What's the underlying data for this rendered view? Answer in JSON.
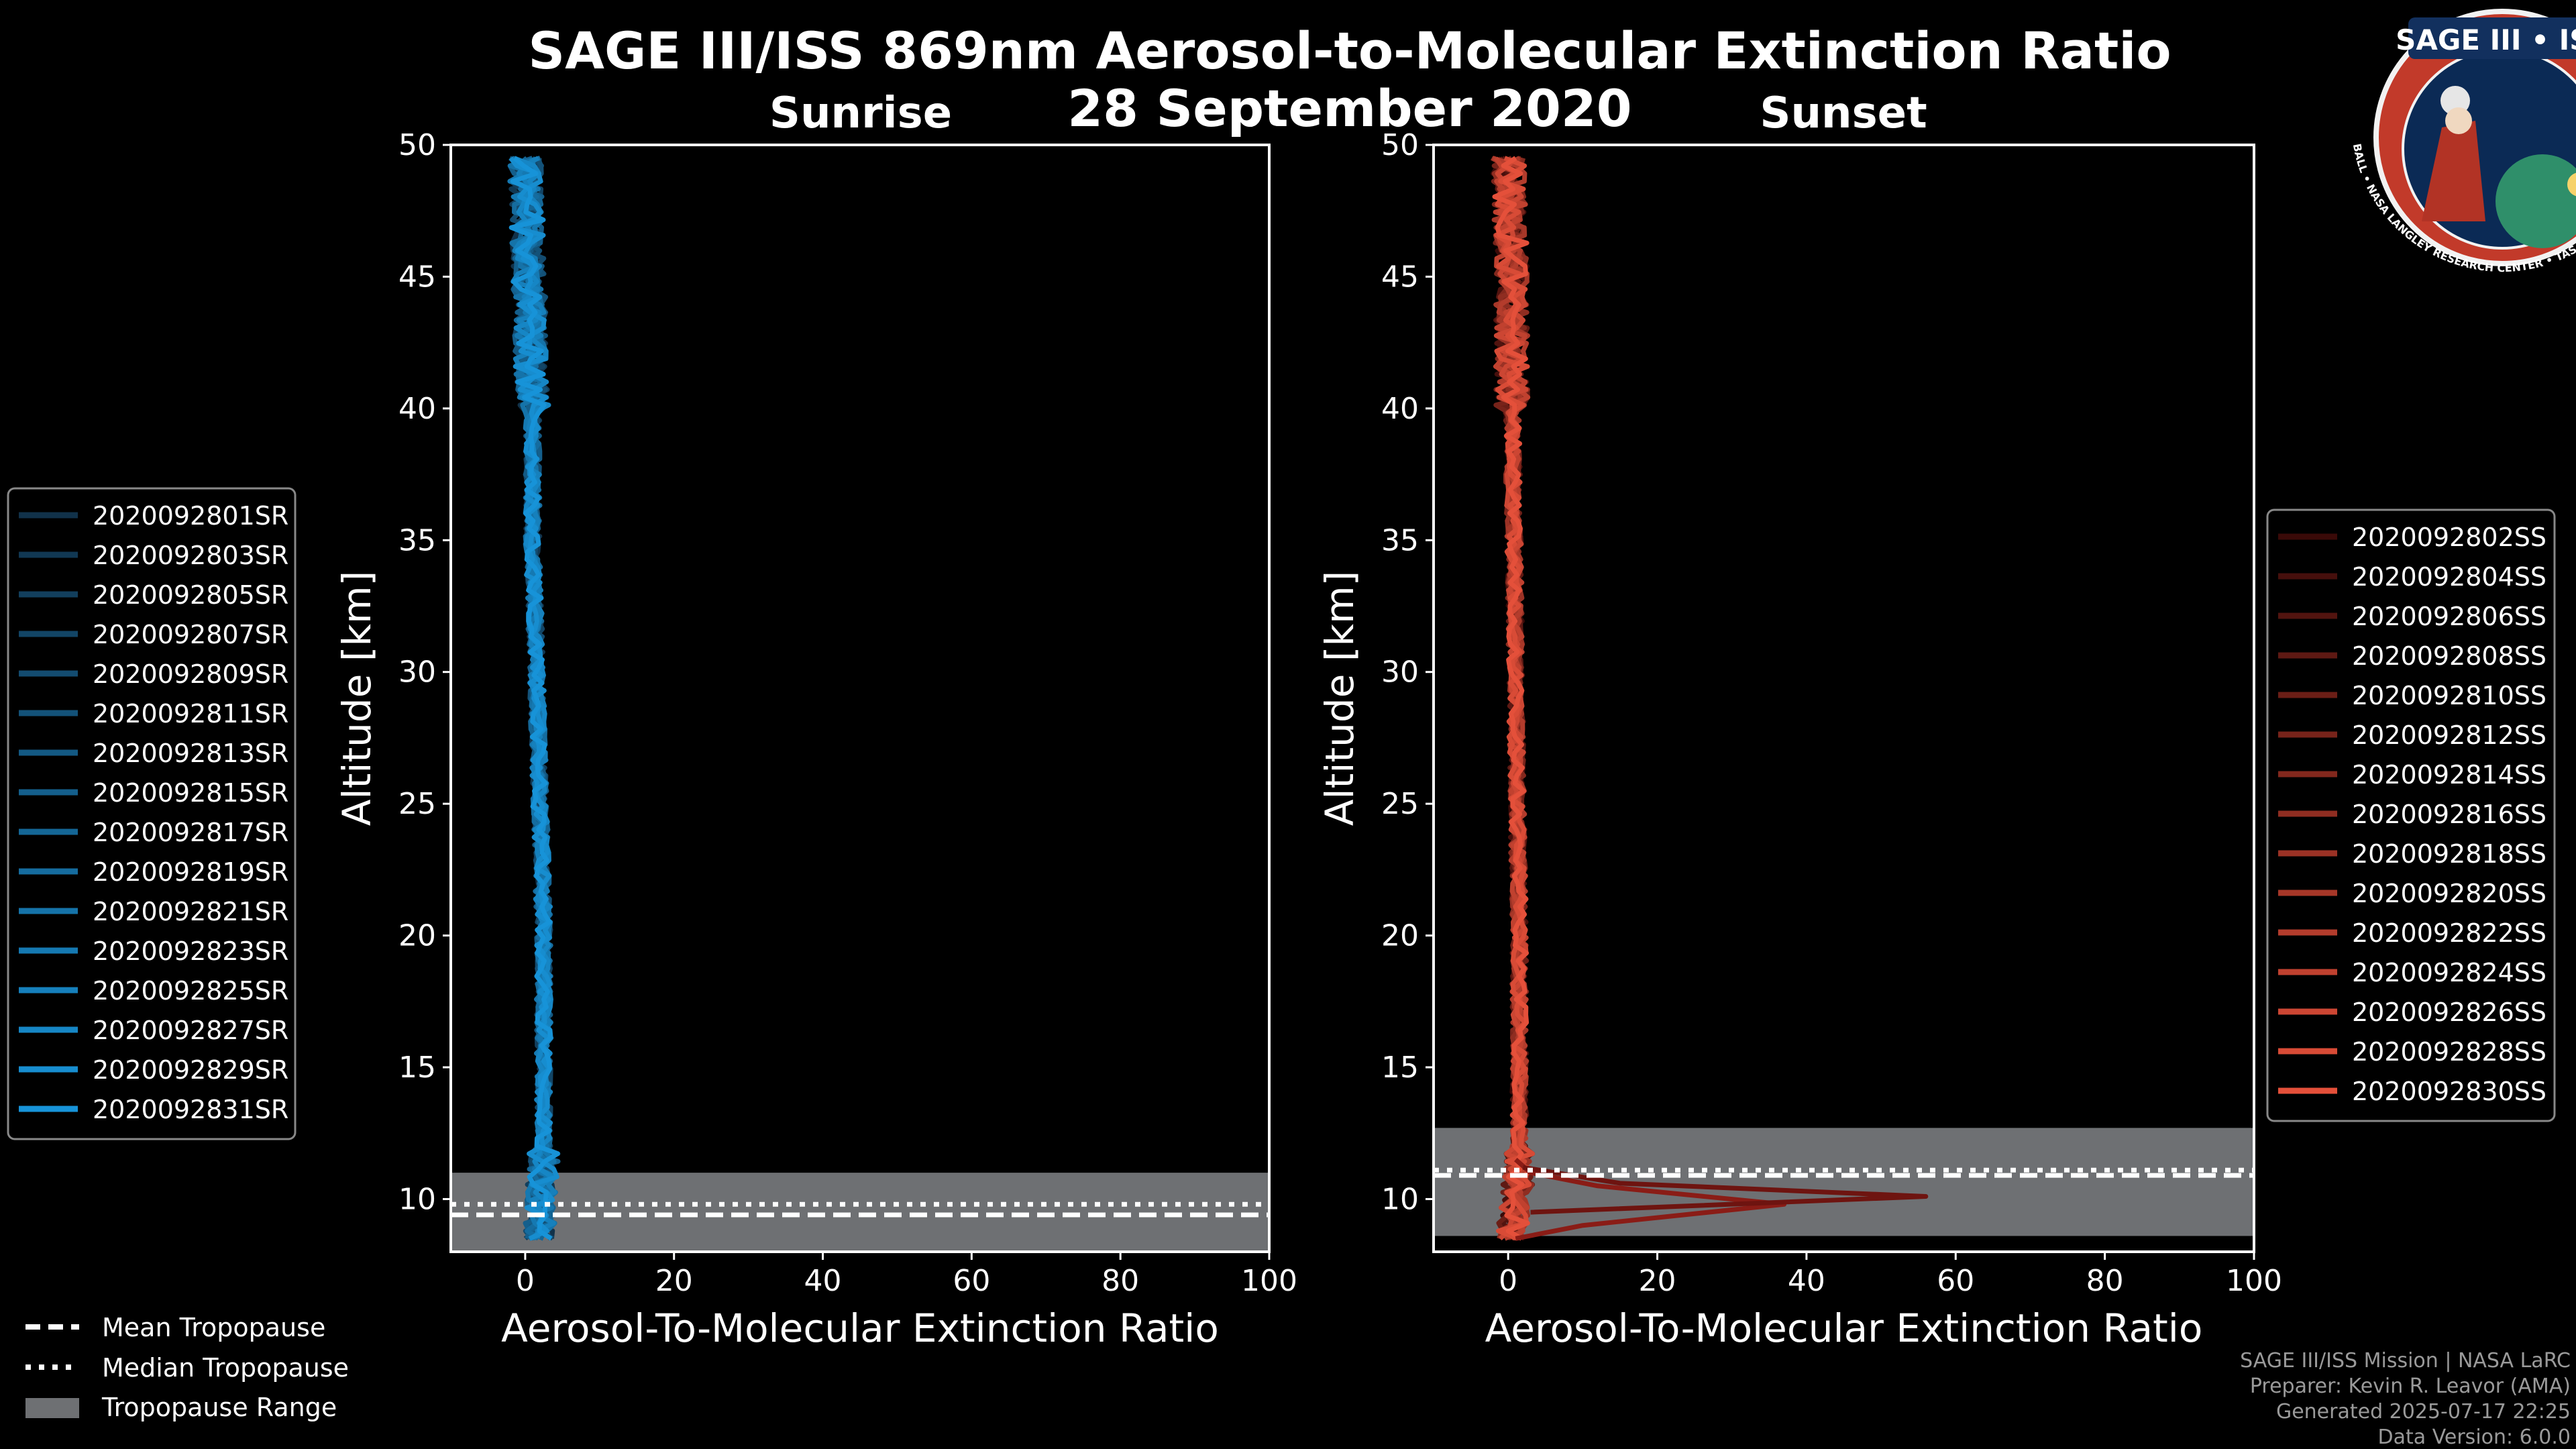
{
  "title_line1": "SAGE III/ISS 869nm Aerosol-to-Molecular Extinction Ratio",
  "title_line2": "28 September 2020",
  "badge": {
    "name": "SAGE III • ISS",
    "ring_text": "BALL • NASA LANGLEY RESEARCH CENTER • TAS-I • ESA"
  },
  "footer": {
    "line1": "SAGE III/ISS Mission | NASA LaRC",
    "line2": "Preparer: Kevin R. Leavor (AMA)",
    "line3": "Generated 2025-07-17 22:25",
    "line4": "Data Version: 6.0.0"
  },
  "common_legend": {
    "mean": "Mean Tropopause",
    "median": "Median Tropopause",
    "range": "Tropopause Range"
  },
  "chart_data": [
    {
      "type": "line",
      "title": "Sunrise",
      "xlabel": "Aerosol-To-Molecular Extinction Ratio",
      "ylabel": "Altitude [km]",
      "xlim": [
        -10,
        100
      ],
      "ylim": [
        8,
        50
      ],
      "xticks": [
        "0",
        "20",
        "40",
        "60",
        "80",
        "100"
      ],
      "yticks": [
        "10",
        "15",
        "20",
        "25",
        "30",
        "35",
        "40",
        "45",
        "50"
      ],
      "grid": false,
      "legend_position": "left",
      "tropopause": {
        "range": [
          8,
          11
        ],
        "mean": 9.4,
        "median": 9.8
      },
      "series_names": [
        "2020092801SR",
        "2020092803SR",
        "2020092805SR",
        "2020092807SR",
        "2020092809SR",
        "2020092811SR",
        "2020092813SR",
        "2020092815SR",
        "2020092817SR",
        "2020092819SR",
        "2020092821SR",
        "2020092823SR",
        "2020092825SR",
        "2020092827SR",
        "2020092829SR",
        "2020092831SR"
      ],
      "color_start": "#11324a",
      "color_end": "#1793d8",
      "profile": {
        "alt": [
          8.5,
          10,
          11,
          12,
          15,
          20,
          25,
          30,
          35,
          40,
          45,
          49.5
        ],
        "value": [
          2,
          2,
          2.5,
          2.5,
          2.5,
          2.5,
          2,
          1.5,
          1,
          1,
          0.5,
          0
        ]
      }
    },
    {
      "type": "line",
      "title": "Sunset",
      "xlabel": "Aerosol-To-Molecular Extinction Ratio",
      "ylabel": "Altitude [km]",
      "xlim": [
        -10,
        100
      ],
      "ylim": [
        8,
        50
      ],
      "xticks": [
        "0",
        "20",
        "40",
        "60",
        "80",
        "100"
      ],
      "yticks": [
        "10",
        "15",
        "20",
        "25",
        "30",
        "35",
        "40",
        "45",
        "50"
      ],
      "grid": false,
      "legend_position": "right",
      "tropopause": {
        "range": [
          8.6,
          12.7
        ],
        "mean": 10.9,
        "median": 11.1
      },
      "series_names": [
        "2020092802SS",
        "2020092804SS",
        "2020092806SS",
        "2020092808SS",
        "2020092810SS",
        "2020092812SS",
        "2020092814SS",
        "2020092816SS",
        "2020092818SS",
        "2020092820SS",
        "2020092822SS",
        "2020092824SS",
        "2020092826SS",
        "2020092828SS",
        "2020092830SS"
      ],
      "color_start": "#3a0a08",
      "color_end": "#e4503a",
      "profile": {
        "alt": [
          8.5,
          10,
          11,
          12,
          15,
          20,
          25,
          30,
          35,
          40,
          45,
          49.5
        ],
        "value": [
          0.5,
          1,
          1.5,
          1.5,
          1.5,
          1.5,
          1.2,
          1,
          0.8,
          0.5,
          0.5,
          0
        ]
      },
      "spikes": [
        {
          "alt": [
            8.5,
            9,
            9.8,
            10.5,
            11,
            11.5
          ],
          "value": [
            1,
            10,
            37,
            12,
            3,
            1
          ]
        },
        {
          "alt": [
            9.5,
            10.1,
            10.6,
            11.2
          ],
          "value": [
            3,
            56,
            15,
            2
          ]
        }
      ]
    }
  ]
}
